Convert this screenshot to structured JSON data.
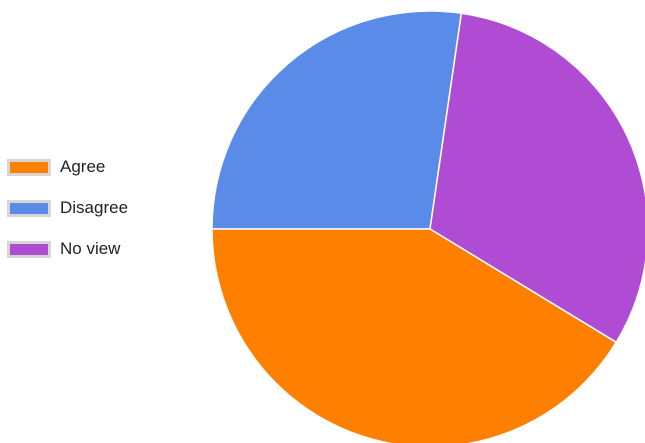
{
  "chart_data": {
    "type": "pie",
    "title": "",
    "start_angle_deg": 180,
    "direction": "clockwise",
    "legend_position": "left",
    "slices": [
      {
        "label": "Disagree",
        "value": 27.3,
        "color": "#5a8be8"
      },
      {
        "label": "No view",
        "value": 31.4,
        "color": "#b04cd3"
      },
      {
        "label": "Agree",
        "value": 41.3,
        "color": "#ff8000"
      }
    ],
    "legend": [
      {
        "label": "Agree",
        "color": "#ff8000"
      },
      {
        "label": "Disagree",
        "color": "#5a8be8"
      },
      {
        "label": "No view",
        "color": "#b04cd3"
      }
    ]
  }
}
